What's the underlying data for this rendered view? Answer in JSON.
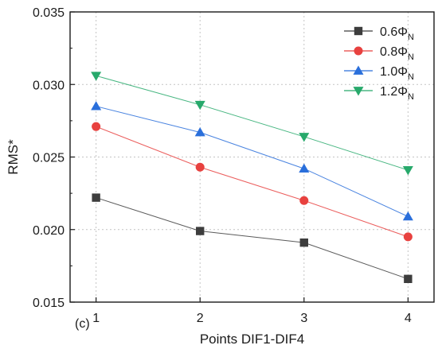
{
  "chart_data": {
    "type": "line",
    "title": "",
    "xlabel": "Points DIF1-DIF4",
    "ylabel": "RMS*",
    "panel_label": "(c)",
    "x": [
      1,
      2,
      3,
      4
    ],
    "x_tick_labels": [
      "1",
      "2",
      "3",
      "4"
    ],
    "xlim": [
      0.75,
      4.25
    ],
    "ylim": [
      0.015,
      0.035
    ],
    "y_ticks": [
      0.015,
      0.02,
      0.025,
      0.03,
      0.035
    ],
    "y_tick_labels": [
      "0.015",
      "0.020",
      "0.025",
      "0.030",
      "0.035"
    ],
    "grid": true,
    "grid_style": "dotted",
    "legend_position": "top-right",
    "series": [
      {
        "name": "0.6Φ",
        "subscript": "N",
        "color": "#3d3d3d",
        "marker": "square",
        "values": [
          0.0222,
          0.0199,
          0.0191,
          0.0166
        ]
      },
      {
        "name": "0.8Φ",
        "subscript": "N",
        "color": "#e8413f",
        "marker": "circle",
        "values": [
          0.0271,
          0.0243,
          0.022,
          0.0195
        ]
      },
      {
        "name": "1.0Φ",
        "subscript": "N",
        "color": "#2a6fdb",
        "marker": "triangle-up",
        "values": [
          0.0285,
          0.0267,
          0.0242,
          0.0209
        ]
      },
      {
        "name": "1.2Φ",
        "subscript": "N",
        "color": "#27a96b",
        "marker": "triangle-down",
        "values": [
          0.0306,
          0.0286,
          0.0264,
          0.0241
        ]
      }
    ]
  }
}
